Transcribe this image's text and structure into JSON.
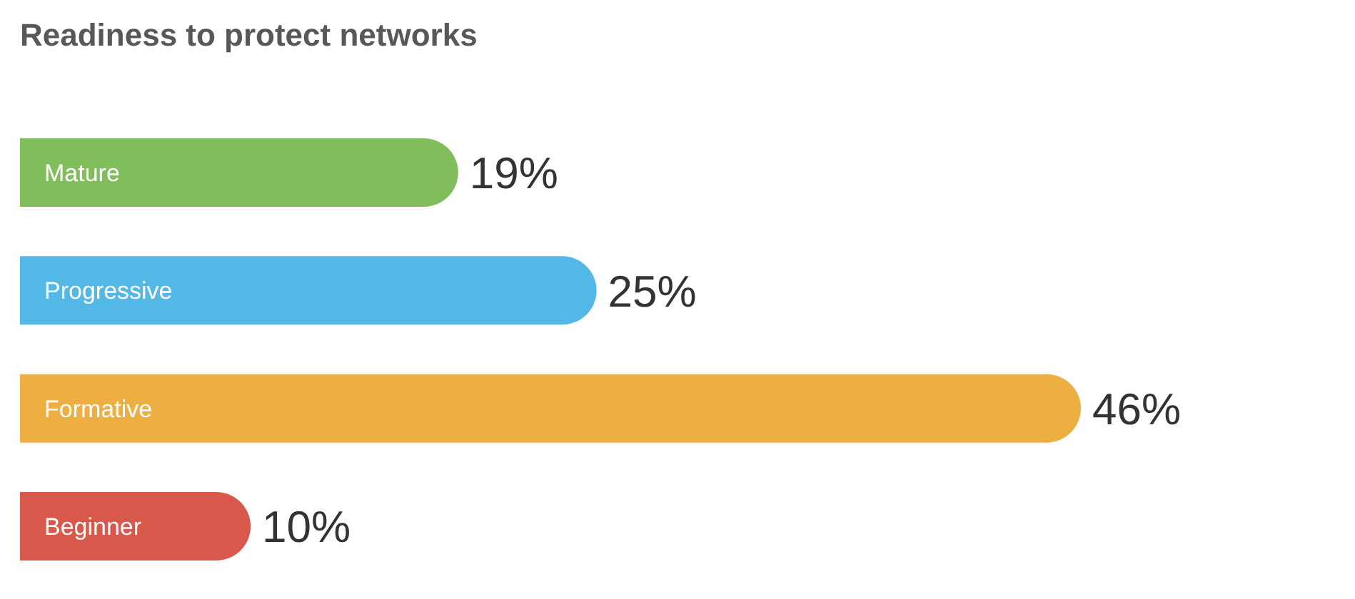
{
  "chart_data": {
    "type": "bar",
    "orientation": "horizontal",
    "title": "Readiness to protect networks",
    "categories": [
      "Mature",
      "Progressive",
      "Formative",
      "Beginner"
    ],
    "values": [
      19,
      25,
      46,
      10
    ],
    "colors": [
      "#80bd5b",
      "#53b8e6",
      "#edae42",
      "#d9584c"
    ],
    "value_labels": [
      "19%",
      "25%",
      "46%",
      "10%"
    ]
  }
}
